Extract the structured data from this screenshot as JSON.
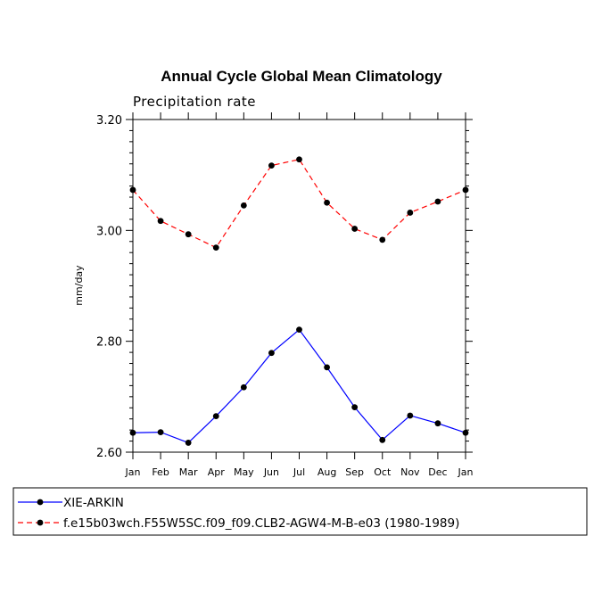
{
  "chart_data": {
    "type": "line",
    "title": "Annual Cycle Global Mean Climatology",
    "subtitle": "Precipitation rate",
    "xlabel": "",
    "ylabel": "mm/day",
    "ylim": [
      2.6,
      3.2
    ],
    "yticks": [
      "3.20",
      "3.00",
      "2.80",
      "2.60"
    ],
    "categories": [
      "Jan",
      "Feb",
      "Mar",
      "Apr",
      "May",
      "Jun",
      "Jul",
      "Aug",
      "Sep",
      "Oct",
      "Nov",
      "Dec",
      "Jan"
    ],
    "series": [
      {
        "name": "XIE-ARKIN",
        "color": "#0000ff",
        "style": "solid",
        "values": [
          2.635,
          2.636,
          2.617,
          2.665,
          2.717,
          2.779,
          2.821,
          2.753,
          2.681,
          2.622,
          2.666,
          2.652,
          2.635
        ]
      },
      {
        "name": "f.e15b03wch.F55W5SC.f09_f09.CLB2-AGW4-M-B-e03 (1980-1989)",
        "color": "#ff0000",
        "style": "dashed",
        "values": [
          3.073,
          3.017,
          2.993,
          2.969,
          3.045,
          3.117,
          3.128,
          3.05,
          3.003,
          2.983,
          3.032,
          3.052,
          3.073
        ]
      }
    ]
  }
}
